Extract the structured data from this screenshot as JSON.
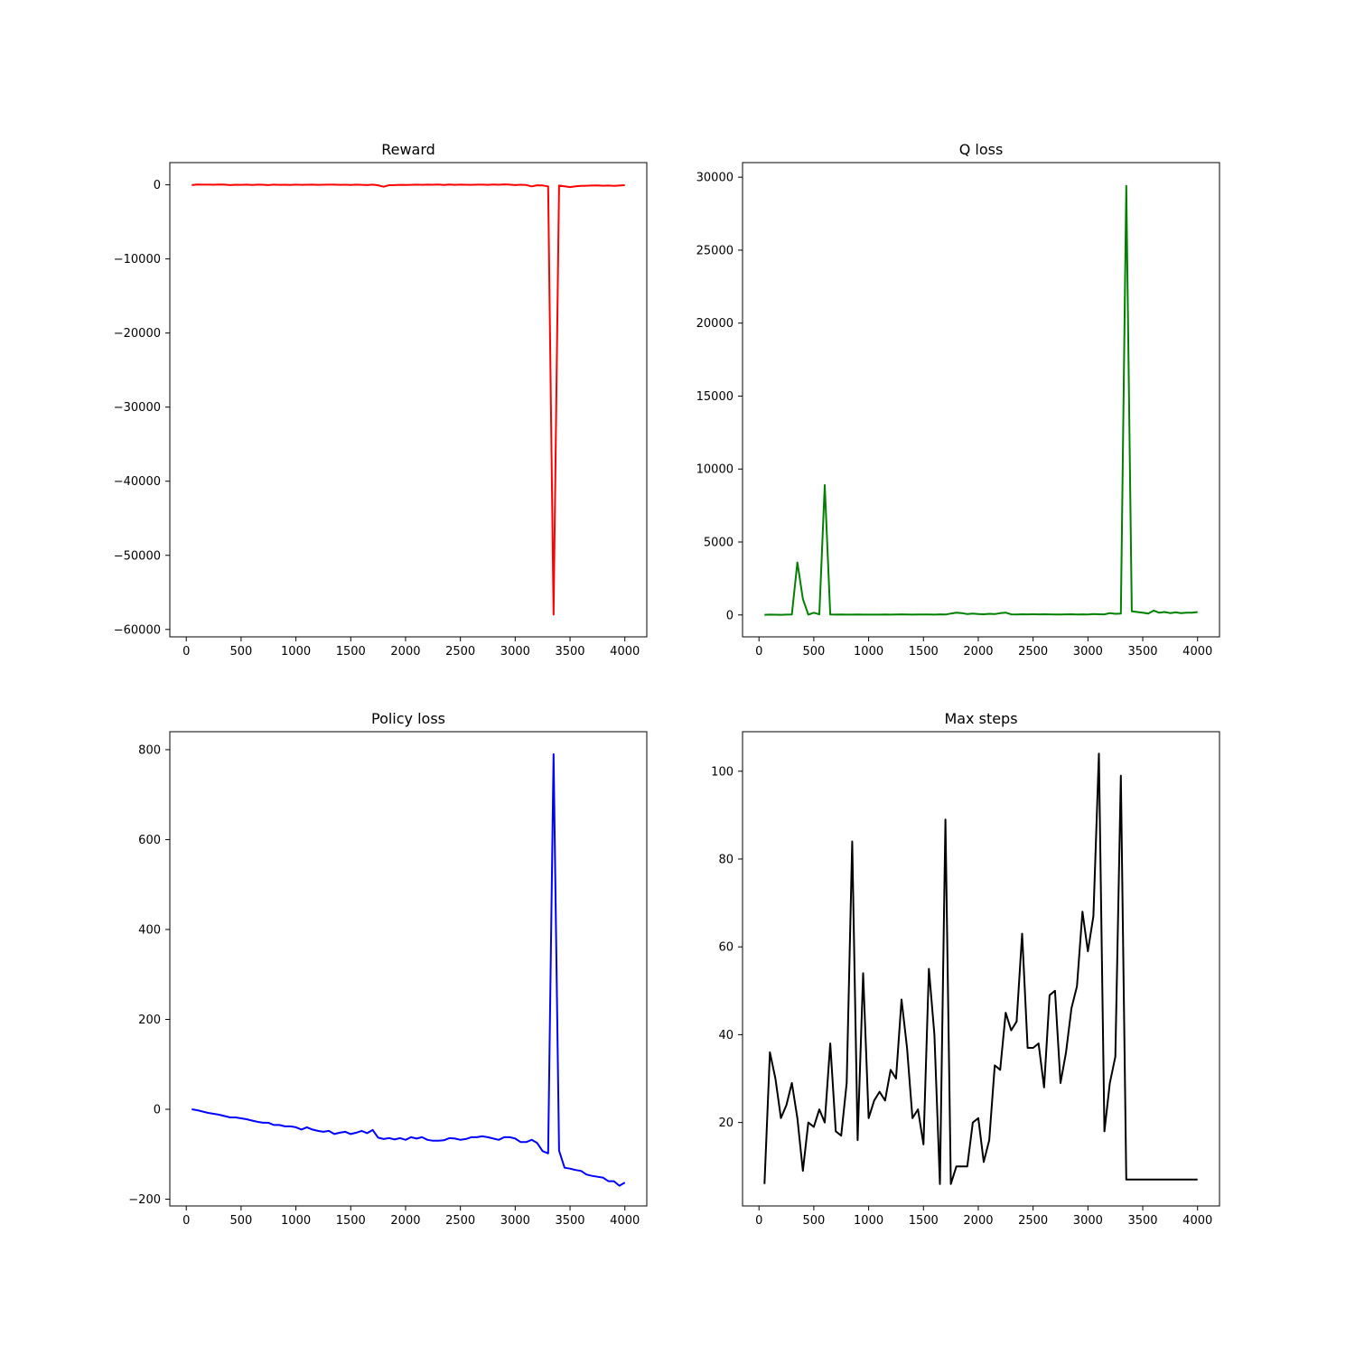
{
  "figure": {
    "background": "#ffffff"
  },
  "chart_data": [
    {
      "type": "line",
      "title": "Reward",
      "xlabel": "",
      "ylabel": "",
      "color": "#ff0000",
      "xlim": [
        -150,
        4200
      ],
      "ylim": [
        -61000,
        3000
      ],
      "xticks": [
        0,
        500,
        1000,
        1500,
        2000,
        2500,
        3000,
        3500,
        4000
      ],
      "xtick_labels": [
        "0",
        "500",
        "1000",
        "1500",
        "2000",
        "2500",
        "3000",
        "3500",
        "4000"
      ],
      "yticks": [
        0,
        -10000,
        -20000,
        -30000,
        -40000,
        -50000,
        -60000
      ],
      "ytick_labels": [
        "0",
        "−10000",
        "−20000",
        "−30000",
        "−40000",
        "−50000",
        "−60000"
      ],
      "x": [
        50,
        100,
        150,
        200,
        250,
        300,
        350,
        400,
        450,
        500,
        550,
        600,
        650,
        700,
        750,
        800,
        850,
        900,
        950,
        1000,
        1050,
        1100,
        1150,
        1200,
        1250,
        1300,
        1350,
        1400,
        1450,
        1500,
        1550,
        1600,
        1650,
        1700,
        1750,
        1800,
        1850,
        1900,
        1950,
        2000,
        2050,
        2100,
        2150,
        2200,
        2250,
        2300,
        2350,
        2400,
        2450,
        2500,
        2550,
        2600,
        2650,
        2700,
        2750,
        2800,
        2850,
        2900,
        2950,
        3000,
        3050,
        3100,
        3150,
        3200,
        3250,
        3300,
        3350,
        3400,
        3450,
        3500,
        3550,
        3600,
        3650,
        3700,
        3750,
        3800,
        3850,
        3900,
        3950,
        4000
      ],
      "y": [
        -30,
        40,
        20,
        30,
        10,
        40,
        20,
        -40,
        10,
        0,
        20,
        -10,
        30,
        10,
        -30,
        20,
        0,
        10,
        -20,
        30,
        0,
        10,
        20,
        0,
        10,
        30,
        20,
        0,
        10,
        -10,
        20,
        0,
        -40,
        30,
        -60,
        -250,
        -50,
        -30,
        0,
        -20,
        0,
        20,
        0,
        30,
        10,
        40,
        -20,
        50,
        0,
        20,
        10,
        0,
        30,
        20,
        0,
        40,
        10,
        60,
        20,
        -30,
        10,
        -20,
        -200,
        -60,
        -90,
        -200,
        -58000,
        -100,
        -200,
        -300,
        -200,
        -150,
        -120,
        -100,
        -80,
        -120,
        -100,
        -150,
        -100,
        -50
      ]
    },
    {
      "type": "line",
      "title": "Q loss",
      "xlabel": "",
      "ylabel": "",
      "color": "#008000",
      "xlim": [
        -150,
        4200
      ],
      "ylim": [
        -1500,
        31000
      ],
      "xticks": [
        0,
        500,
        1000,
        1500,
        2000,
        2500,
        3000,
        3500,
        4000
      ],
      "xtick_labels": [
        "0",
        "500",
        "1000",
        "1500",
        "2000",
        "2500",
        "3000",
        "3500",
        "4000"
      ],
      "yticks": [
        0,
        5000,
        10000,
        15000,
        20000,
        25000,
        30000
      ],
      "ytick_labels": [
        "0",
        "5000",
        "10000",
        "15000",
        "20000",
        "25000",
        "30000"
      ],
      "x": [
        50,
        100,
        150,
        200,
        250,
        300,
        350,
        400,
        450,
        500,
        550,
        600,
        650,
        700,
        750,
        800,
        850,
        900,
        950,
        1000,
        1050,
        1100,
        1150,
        1200,
        1250,
        1300,
        1350,
        1400,
        1450,
        1500,
        1550,
        1600,
        1650,
        1700,
        1750,
        1800,
        1850,
        1900,
        1950,
        2000,
        2050,
        2100,
        2150,
        2200,
        2250,
        2300,
        2350,
        2400,
        2450,
        2500,
        2550,
        2600,
        2650,
        2700,
        2750,
        2800,
        2850,
        2900,
        2950,
        3000,
        3050,
        3100,
        3150,
        3200,
        3250,
        3300,
        3350,
        3400,
        3450,
        3500,
        3550,
        3600,
        3650,
        3700,
        3750,
        3800,
        3850,
        3900,
        3950,
        4000
      ],
      "y": [
        10,
        20,
        15,
        10,
        20,
        30,
        3600,
        1100,
        20,
        150,
        40,
        8900,
        30,
        20,
        30,
        25,
        20,
        30,
        20,
        25,
        20,
        25,
        30,
        25,
        30,
        40,
        30,
        25,
        30,
        35,
        30,
        25,
        40,
        30,
        100,
        150,
        130,
        60,
        90,
        60,
        50,
        80,
        60,
        120,
        160,
        40,
        30,
        50,
        40,
        45,
        40,
        50,
        40,
        35,
        30,
        40,
        50,
        30,
        40,
        35,
        60,
        50,
        40,
        130,
        80,
        100,
        29400,
        250,
        200,
        150,
        100,
        300,
        150,
        200,
        130,
        180,
        120,
        160,
        150,
        200
      ]
    },
    {
      "type": "line",
      "title": "Policy loss",
      "xlabel": "",
      "ylabel": "",
      "color": "#0000ff",
      "xlim": [
        -150,
        4200
      ],
      "ylim": [
        -215,
        840
      ],
      "xticks": [
        0,
        500,
        1000,
        1500,
        2000,
        2500,
        3000,
        3500,
        4000
      ],
      "xtick_labels": [
        "0",
        "500",
        "1000",
        "1500",
        "2000",
        "2500",
        "3000",
        "3500",
        "4000"
      ],
      "yticks": [
        -200,
        0,
        200,
        400,
        600,
        800
      ],
      "ytick_labels": [
        "−200",
        "0",
        "200",
        "400",
        "600",
        "800"
      ],
      "x": [
        50,
        100,
        150,
        200,
        250,
        300,
        350,
        400,
        450,
        500,
        550,
        600,
        650,
        700,
        750,
        800,
        850,
        900,
        950,
        1000,
        1050,
        1100,
        1150,
        1200,
        1250,
        1300,
        1350,
        1400,
        1450,
        1500,
        1550,
        1600,
        1650,
        1700,
        1750,
        1800,
        1850,
        1900,
        1950,
        2000,
        2050,
        2100,
        2150,
        2200,
        2250,
        2300,
        2350,
        2400,
        2450,
        2500,
        2550,
        2600,
        2650,
        2700,
        2750,
        2800,
        2850,
        2900,
        2950,
        3000,
        3050,
        3100,
        3150,
        3200,
        3250,
        3300,
        3350,
        3400,
        3450,
        3500,
        3550,
        3600,
        3650,
        3700,
        3750,
        3800,
        3850,
        3900,
        3950,
        4000
      ],
      "y": [
        0,
        -2,
        -5,
        -8,
        -10,
        -12,
        -15,
        -18,
        -18,
        -20,
        -22,
        -25,
        -28,
        -30,
        -30,
        -35,
        -35,
        -38,
        -38,
        -40,
        -45,
        -40,
        -45,
        -48,
        -50,
        -48,
        -55,
        -52,
        -50,
        -55,
        -52,
        -48,
        -53,
        -46,
        -63,
        -66,
        -64,
        -67,
        -64,
        -68,
        -62,
        -65,
        -62,
        -68,
        -70,
        -70,
        -69,
        -64,
        -65,
        -68,
        -66,
        -62,
        -62,
        -60,
        -62,
        -65,
        -68,
        -62,
        -62,
        -65,
        -73,
        -73,
        -68,
        -75,
        -93,
        -98,
        790,
        -92,
        -130,
        -132,
        -135,
        -137,
        -145,
        -148,
        -150,
        -152,
        -160,
        -160,
        -170,
        -163
      ]
    },
    {
      "type": "line",
      "title": "Max steps",
      "xlabel": "",
      "ylabel": "",
      "color": "#000000",
      "xlim": [
        -150,
        4200
      ],
      "ylim": [
        1,
        109
      ],
      "xticks": [
        0,
        500,
        1000,
        1500,
        2000,
        2500,
        3000,
        3500,
        4000
      ],
      "xtick_labels": [
        "0",
        "500",
        "1000",
        "1500",
        "2000",
        "2500",
        "3000",
        "3500",
        "4000"
      ],
      "yticks": [
        20,
        40,
        60,
        80,
        100
      ],
      "ytick_labels": [
        "20",
        "40",
        "60",
        "80",
        "100"
      ],
      "x": [
        50,
        100,
        150,
        200,
        250,
        300,
        350,
        400,
        450,
        500,
        550,
        600,
        650,
        700,
        750,
        800,
        850,
        900,
        950,
        1000,
        1050,
        1100,
        1150,
        1200,
        1250,
        1300,
        1350,
        1400,
        1450,
        1500,
        1550,
        1600,
        1650,
        1700,
        1750,
        1800,
        1850,
        1900,
        1950,
        2000,
        2050,
        2100,
        2150,
        2200,
        2250,
        2300,
        2350,
        2400,
        2450,
        2500,
        2550,
        2600,
        2650,
        2700,
        2750,
        2800,
        2850,
        2900,
        2950,
        3000,
        3050,
        3100,
        3150,
        3200,
        3250,
        3300,
        3350,
        3400,
        3450,
        3500,
        3550,
        3600,
        3650,
        3700,
        3750,
        3800,
        3850,
        3900,
        3950,
        4000
      ],
      "y": [
        6,
        36,
        30,
        21,
        24,
        29,
        21,
        9,
        20,
        19,
        23,
        20,
        38,
        18,
        17,
        29,
        84,
        16,
        54,
        21,
        25,
        27,
        25,
        32,
        30,
        48,
        37,
        21,
        23,
        15,
        55,
        40,
        6,
        89,
        6,
        10,
        10,
        10,
        20,
        21,
        11,
        16,
        33,
        32,
        45,
        41,
        43,
        63,
        37,
        37,
        38,
        28,
        49,
        50,
        29,
        36,
        46,
        51,
        68,
        59,
        67,
        104,
        18,
        29,
        35,
        99,
        7,
        7,
        7,
        7,
        7,
        7,
        7,
        7,
        7,
        7,
        7,
        7,
        7,
        7
      ]
    }
  ]
}
